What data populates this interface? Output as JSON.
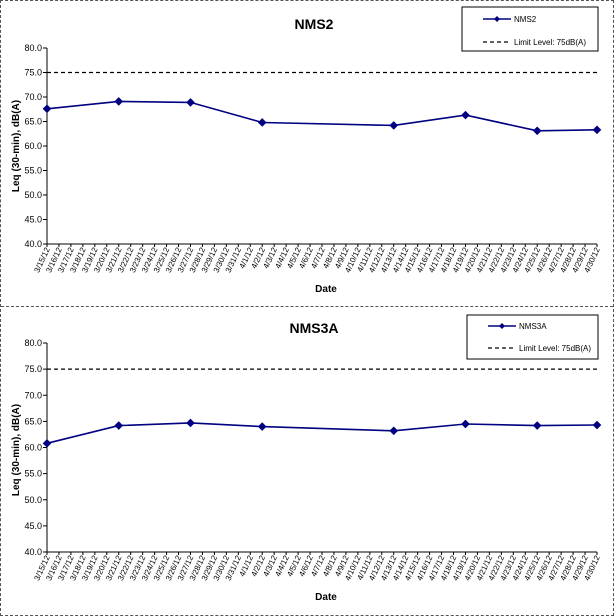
{
  "chart_data": [
    {
      "type": "line",
      "title": "NMS2",
      "xlabel": "Date",
      "ylabel": "Leq (30-min), dB(A)",
      "ylim": [
        40,
        80
      ],
      "yticks": [
        "40.0",
        "45.0",
        "50.0",
        "55.0",
        "60.0",
        "65.0",
        "70.0",
        "75.0",
        "80.0"
      ],
      "categories": [
        "3/15/12",
        "3/16/12",
        "3/17/12",
        "3/18/12",
        "3/19/12",
        "3/20/12",
        "3/21/12",
        "3/22/12",
        "3/23/12",
        "3/24/12",
        "3/25/12",
        "3/26/12",
        "3/27/12",
        "3/28/12",
        "3/29/12",
        "3/30/12",
        "3/31/12",
        "4/1/12",
        "4/2/12",
        "4/3/12",
        "4/4/12",
        "4/5/12",
        "4/6/12",
        "4/7/12",
        "4/8/12",
        "4/9/12",
        "4/10/12",
        "4/11/12",
        "4/12/12",
        "4/13/12",
        "4/14/12",
        "4/15/12",
        "4/16/12",
        "4/17/12",
        "4/18/12",
        "4/19/12",
        "4/20/12",
        "4/21/12",
        "4/22/12",
        "4/23/12",
        "4/24/12",
        "4/25/12",
        "4/26/12",
        "4/27/12",
        "4/28/12",
        "4/29/12",
        "4/30/12"
      ],
      "series": [
        {
          "name": "NMS2",
          "color": "#000080",
          "marker": "diamond",
          "points": [
            [
              "3/15/12",
              67.6
            ],
            [
              "3/21/12",
              69.1
            ],
            [
              "3/27/12",
              68.9
            ],
            [
              "4/2/12",
              64.8
            ],
            [
              "4/13/12",
              64.2
            ],
            [
              "4/19/12",
              66.3
            ],
            [
              "4/25/12",
              63.1
            ],
            [
              "4/30/12",
              63.3
            ]
          ]
        },
        {
          "name": "Limit Level:  75dB(A)",
          "color": "#000000",
          "style": "dashed",
          "points": [
            [
              "3/15/12",
              75
            ],
            [
              "4/30/12",
              75
            ]
          ]
        }
      ],
      "legend": "top-right"
    },
    {
      "type": "line",
      "title": "NMS3A",
      "xlabel": "Date",
      "ylabel": "Leq (30-min), dB(A)",
      "ylim": [
        40,
        80
      ],
      "yticks": [
        "40.0",
        "45.0",
        "50.0",
        "55.0",
        "60.0",
        "65.0",
        "70.0",
        "75.0",
        "80.0"
      ],
      "categories": [
        "3/15/12",
        "3/16/12",
        "3/17/12",
        "3/18/12",
        "3/19/12",
        "3/20/12",
        "3/21/12",
        "3/22/12",
        "3/23/12",
        "3/24/12",
        "3/25/12",
        "3/26/12",
        "3/27/12",
        "3/28/12",
        "3/29/12",
        "3/30/12",
        "3/31/12",
        "4/1/12",
        "4/2/12",
        "4/3/12",
        "4/4/12",
        "4/5/12",
        "4/6/12",
        "4/7/12",
        "4/8/12",
        "4/9/12",
        "4/10/12",
        "4/11/12",
        "4/12/12",
        "4/13/12",
        "4/14/12",
        "4/15/12",
        "4/16/12",
        "4/17/12",
        "4/18/12",
        "4/19/12",
        "4/20/12",
        "4/21/12",
        "4/22/12",
        "4/23/12",
        "4/24/12",
        "4/25/12",
        "4/26/12",
        "4/27/12",
        "4/28/12",
        "4/29/12",
        "4/30/12"
      ],
      "series": [
        {
          "name": "NMS3A",
          "color": "#000080",
          "marker": "diamond",
          "points": [
            [
              "3/15/12",
              60.8
            ],
            [
              "3/21/12",
              64.2
            ],
            [
              "3/27/12",
              64.7
            ],
            [
              "4/2/12",
              64.0
            ],
            [
              "4/13/12",
              63.2
            ],
            [
              "4/19/12",
              64.5
            ],
            [
              "4/25/12",
              64.2
            ],
            [
              "4/30/12",
              64.3
            ]
          ]
        },
        {
          "name": "Limit Level:  75dB(A)",
          "color": "#000000",
          "style": "dashed",
          "points": [
            [
              "3/15/12",
              75
            ],
            [
              "4/30/12",
              75
            ]
          ]
        }
      ],
      "legend": "top-right"
    }
  ]
}
